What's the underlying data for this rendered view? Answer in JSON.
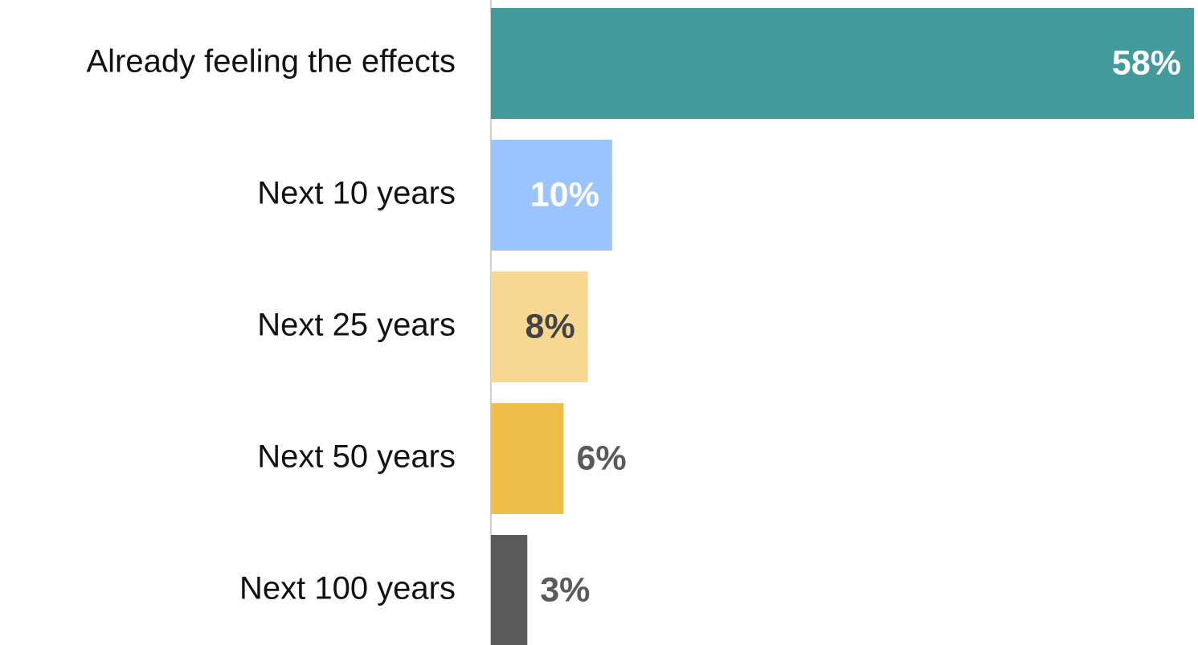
{
  "chart_data": {
    "type": "hbar",
    "categories": [
      "Already feeling the effects",
      "Next 10 years",
      "Next 25 years",
      "Next 50 years",
      "Next 100 years"
    ],
    "values": [
      58,
      10,
      8,
      6,
      3
    ],
    "value_labels": [
      "58%",
      "10%",
      "8%",
      "6%",
      "3%"
    ],
    "colors": [
      "#429a9b",
      "#99c4fd",
      "#f6d893",
      "#f0bf49",
      "#5a5a5a"
    ],
    "label_colors": [
      "#ffffff",
      "#ffffff",
      "#444444",
      "#5a5a5a",
      "#5a5a5a"
    ]
  }
}
